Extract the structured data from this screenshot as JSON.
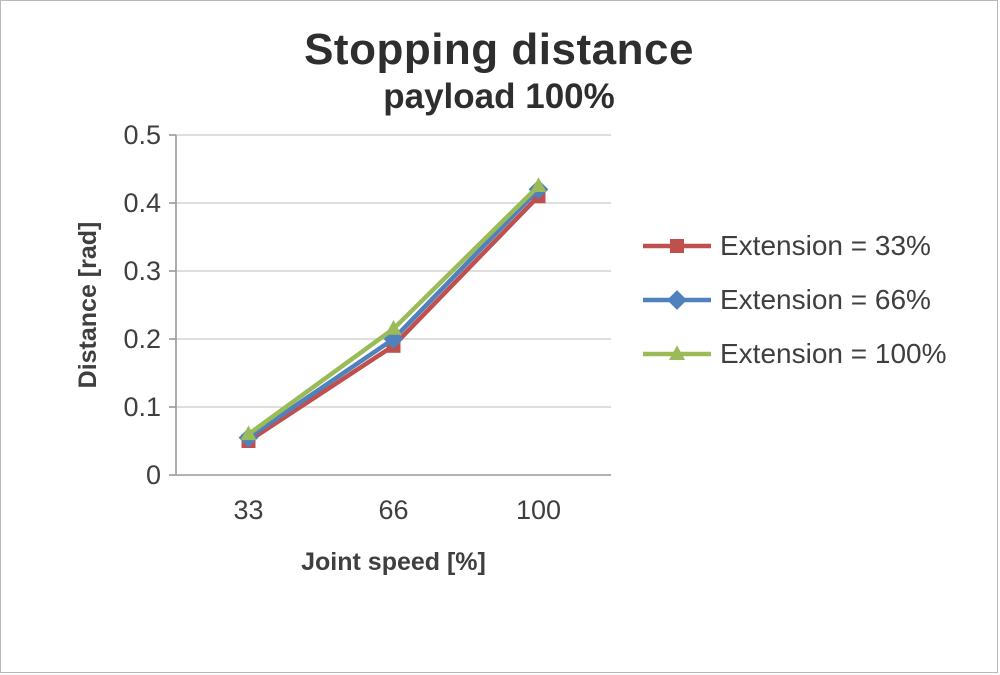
{
  "chart_data": {
    "type": "line",
    "title": "Stopping distance",
    "subtitle": "payload 100%",
    "xlabel": "Joint speed [%]",
    "ylabel": "Distance [rad]",
    "categories": [
      "33",
      "66",
      "100"
    ],
    "series": [
      {
        "name": "Extension = 33%",
        "values": [
          0.05,
          0.19,
          0.41
        ],
        "color": "#c0504d",
        "marker": "square"
      },
      {
        "name": "Extension = 66%",
        "values": [
          0.055,
          0.2,
          0.42
        ],
        "color": "#4f81bd",
        "marker": "diamond"
      },
      {
        "name": "Extension = 100%",
        "values": [
          0.06,
          0.215,
          0.425
        ],
        "color": "#9bbb59",
        "marker": "triangle"
      }
    ],
    "ylim": [
      0,
      0.5
    ],
    "yticks": [
      0,
      0.1,
      0.2,
      0.3,
      0.4,
      0.5
    ],
    "grid": true,
    "legend_position": "right",
    "colors": {
      "gridline": "#d3d3d3",
      "axis": "#9a9a9a",
      "axis_text": "#3f3f3f"
    }
  }
}
